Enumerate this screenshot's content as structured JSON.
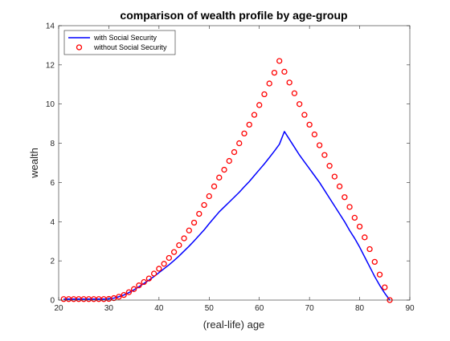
{
  "chart_data": {
    "type": "line",
    "title": "comparison of wealth profile by age-group",
    "xlabel": "(real-life) age",
    "ylabel": "wealth",
    "xlim": [
      20,
      90
    ],
    "ylim": [
      0,
      14
    ],
    "xticks": [
      20,
      30,
      40,
      50,
      60,
      70,
      80,
      90
    ],
    "yticks": [
      0,
      2,
      4,
      6,
      8,
      10,
      12,
      14
    ],
    "grid": false,
    "legend_position": "top-left",
    "colors": {
      "with": "#0000ff",
      "without": "#ff0000",
      "axes": "#262626"
    },
    "x": [
      21,
      22,
      23,
      24,
      25,
      26,
      27,
      28,
      29,
      30,
      31,
      32,
      33,
      34,
      35,
      36,
      37,
      38,
      39,
      40,
      41,
      42,
      43,
      44,
      45,
      46,
      47,
      48,
      49,
      50,
      51,
      52,
      53,
      54,
      55,
      56,
      57,
      58,
      59,
      60,
      61,
      62,
      63,
      64,
      65,
      66,
      67,
      68,
      69,
      70,
      71,
      72,
      73,
      74,
      75,
      76,
      77,
      78,
      79,
      80,
      81,
      82,
      83,
      84,
      85,
      86
    ],
    "series": [
      {
        "name": "with Social Security",
        "style": "line",
        "values": [
          0.05,
          0.05,
          0.05,
          0.05,
          0.05,
          0.05,
          0.05,
          0.05,
          0.05,
          0.06,
          0.1,
          0.17,
          0.26,
          0.38,
          0.52,
          0.68,
          0.85,
          1.02,
          1.2,
          1.4,
          1.6,
          1.8,
          2.02,
          2.25,
          2.5,
          2.75,
          3.02,
          3.3,
          3.58,
          3.9,
          4.2,
          4.5,
          4.75,
          5.0,
          5.25,
          5.5,
          5.78,
          6.05,
          6.35,
          6.65,
          6.95,
          7.27,
          7.6,
          7.95,
          8.6,
          8.2,
          7.8,
          7.4,
          7.05,
          6.7,
          6.35,
          6.0,
          5.6,
          5.2,
          4.8,
          4.4,
          4.0,
          3.55,
          3.15,
          2.7,
          2.2,
          1.7,
          1.2,
          0.75,
          0.35,
          0.0
        ]
      },
      {
        "name": "without Social Security",
        "style": "markers",
        "values": [
          0.05,
          0.05,
          0.05,
          0.05,
          0.05,
          0.05,
          0.05,
          0.05,
          0.05,
          0.06,
          0.1,
          0.17,
          0.26,
          0.4,
          0.56,
          0.75,
          0.92,
          1.1,
          1.35,
          1.6,
          1.85,
          2.15,
          2.45,
          2.8,
          3.15,
          3.55,
          3.95,
          4.4,
          4.85,
          5.3,
          5.8,
          6.25,
          6.65,
          7.1,
          7.55,
          8.0,
          8.5,
          8.95,
          9.45,
          9.95,
          10.5,
          11.05,
          11.6,
          12.2,
          11.65,
          11.1,
          10.55,
          10.0,
          9.45,
          8.95,
          8.45,
          7.9,
          7.4,
          6.85,
          6.3,
          5.8,
          5.25,
          4.75,
          4.2,
          3.75,
          3.2,
          2.6,
          1.95,
          1.3,
          0.65,
          0.0
        ]
      }
    ]
  }
}
